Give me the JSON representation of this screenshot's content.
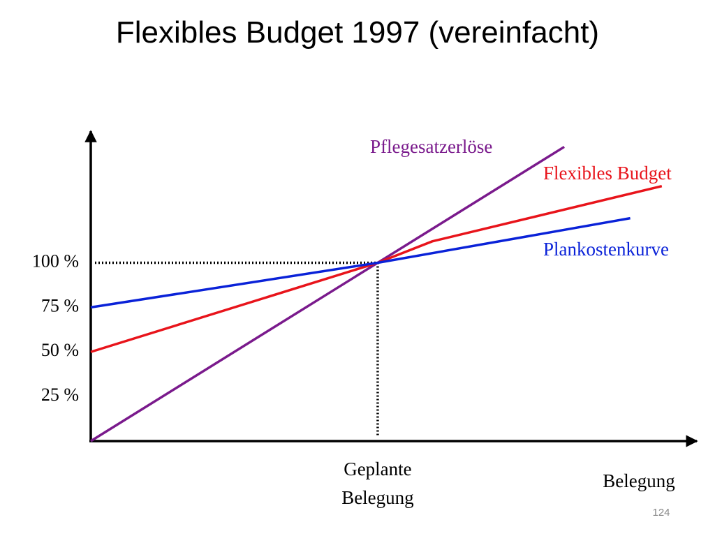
{
  "slide": {
    "title": "Flexibles Budget 1997 (vereinfacht)",
    "page_number": "124"
  },
  "chart_data": {
    "type": "line",
    "x_label": "Belegung",
    "xlim": [
      0,
      210
    ],
    "ylim": [
      0,
      173
    ],
    "yticks": [
      {
        "value": 25,
        "label": "25 %"
      },
      {
        "value": 50,
        "label": "50 %"
      },
      {
        "value": 75,
        "label": "75 %"
      },
      {
        "value": 100,
        "label": "100 %"
      }
    ],
    "grid": false,
    "reference": {
      "x": 100,
      "y": 100,
      "label": "Geplante Belegung"
    },
    "series": [
      {
        "name": "Pflegesatzerlöse",
        "color": "#7a1a8c",
        "x": [
          0,
          165
        ],
        "values": [
          0,
          165
        ]
      },
      {
        "name": "Flexibles Budget",
        "color": "#e8141b",
        "x": [
          0,
          100,
          119,
          199
        ],
        "values": [
          50,
          100,
          112,
          143
        ]
      },
      {
        "name": "Plankostenkurve",
        "color": "#0a22d8",
        "x": [
          0,
          100,
          188
        ],
        "values": [
          75,
          100,
          125
        ]
      }
    ]
  }
}
